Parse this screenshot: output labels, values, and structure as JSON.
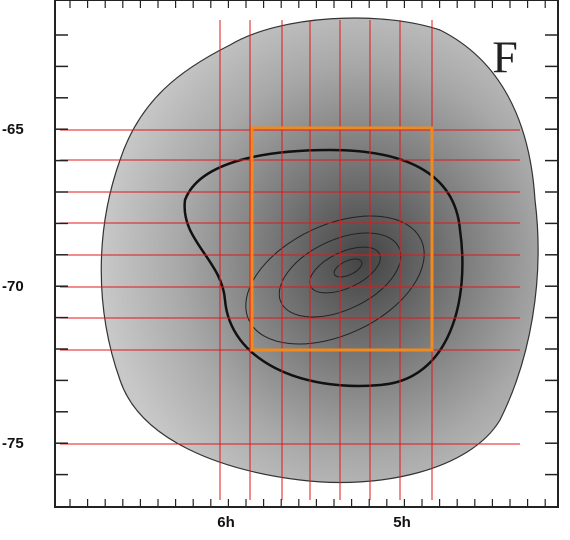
{
  "panel_label": "F",
  "y_axis": {
    "labels": [
      "-65",
      "-70",
      "-75"
    ]
  },
  "x_axis": {
    "labels": [
      "6h",
      "5h"
    ]
  }
}
